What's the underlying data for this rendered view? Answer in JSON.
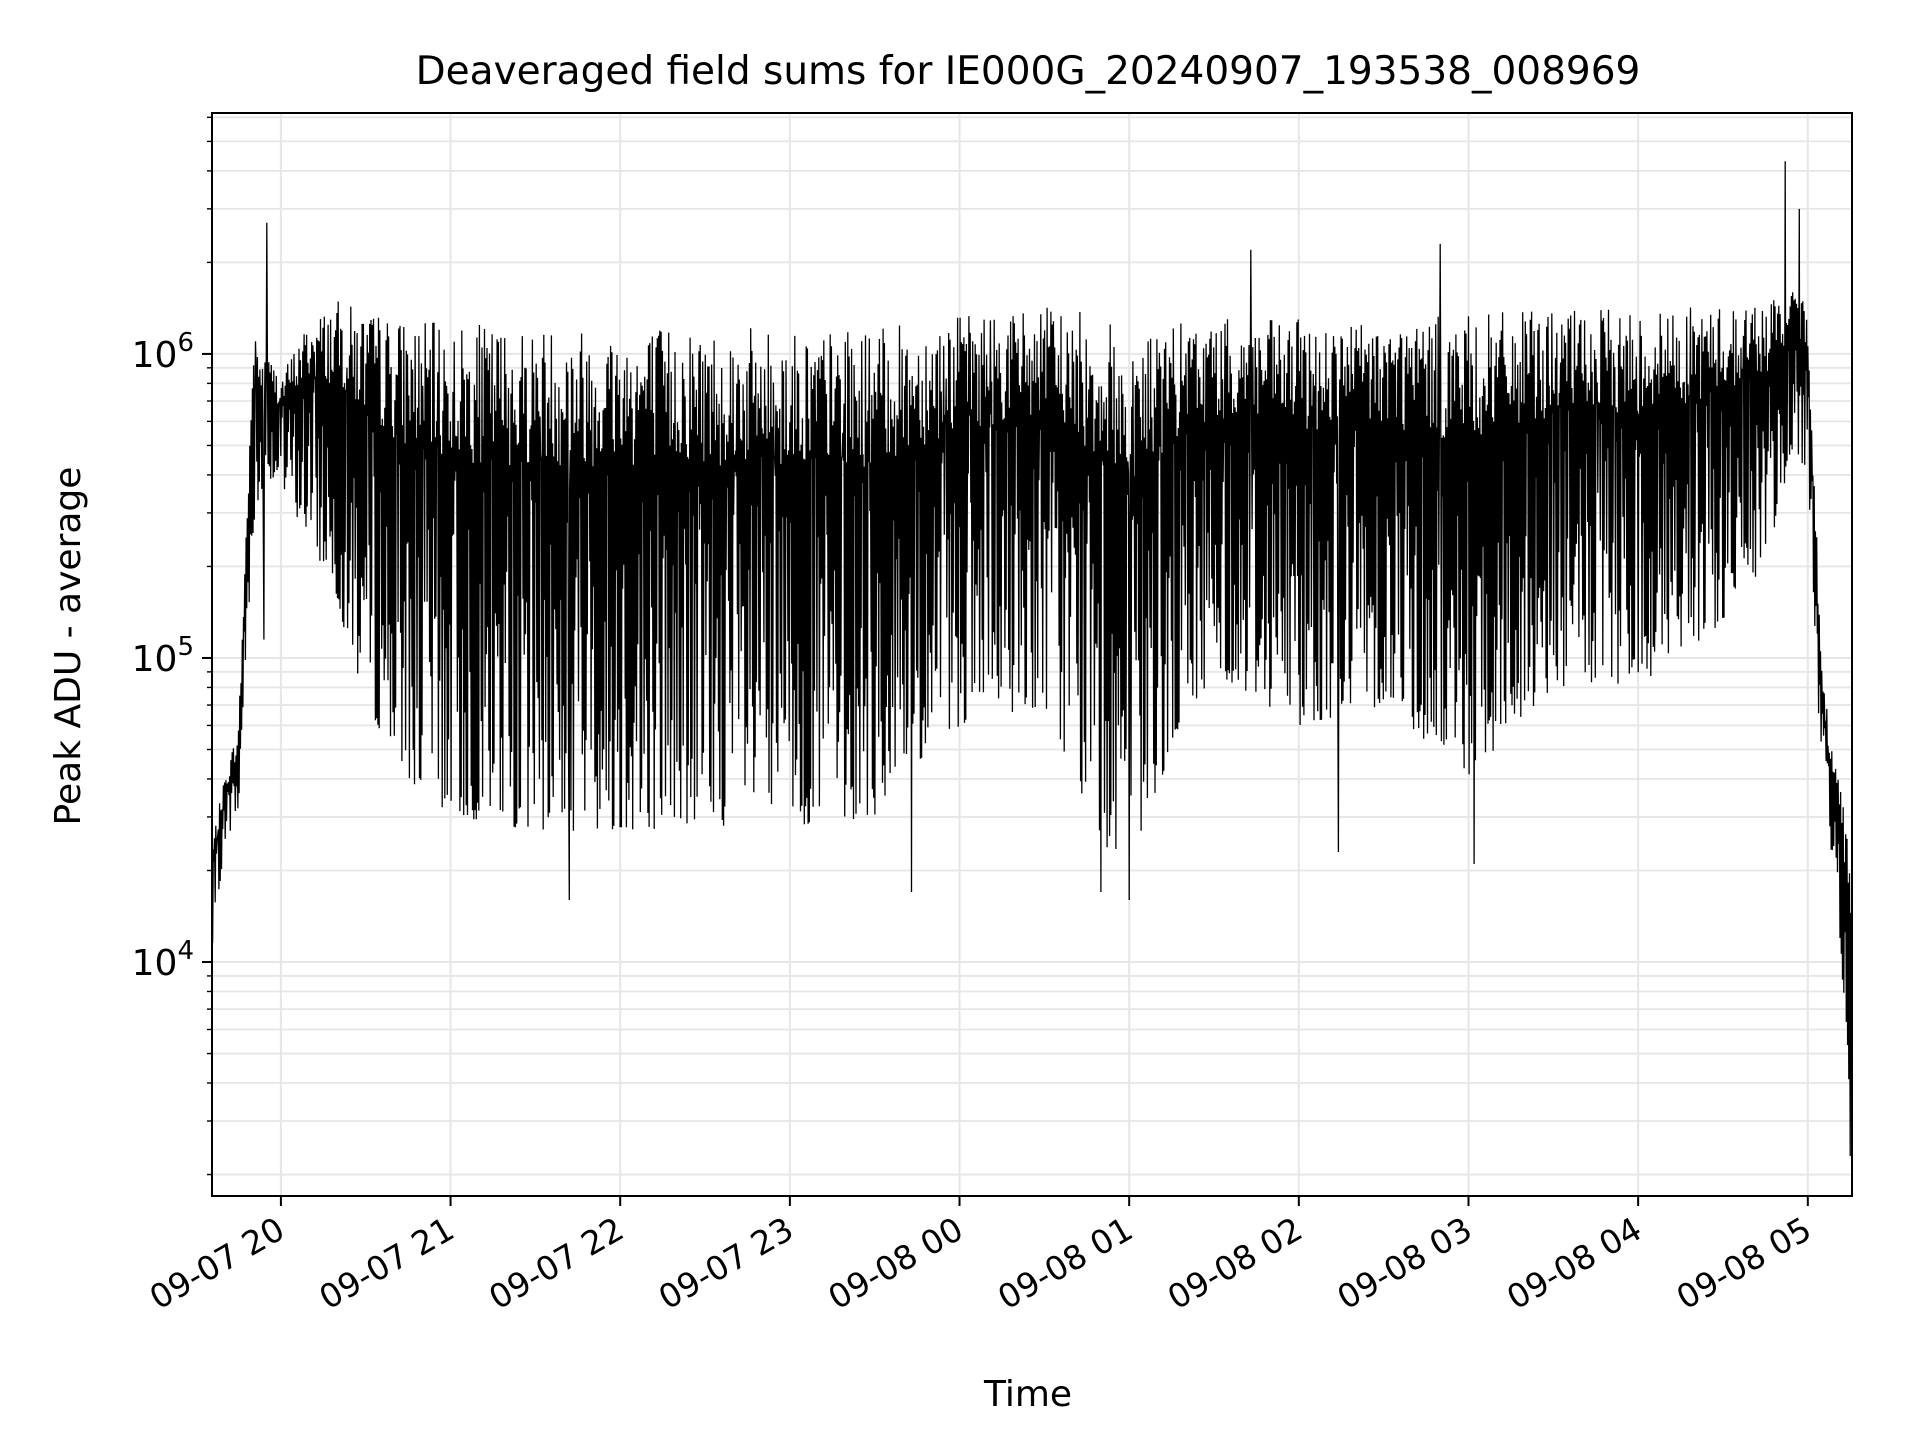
{
  "chart_data": {
    "type": "line",
    "title": "Deaveraged field sums for IE000G_20240907_193538_008969",
    "xlabel": "Time",
    "ylabel": "Peak ADU - average",
    "yscale": "log",
    "ylim": [
      1700,
      6200000
    ],
    "xlim": [
      "2024-09-07 19:35:38",
      "2024-09-08 05:15:38"
    ],
    "x_ticks": [
      {
        "label": "09-07 20",
        "time": "2024-09-07 20:00"
      },
      {
        "label": "09-07 21",
        "time": "2024-09-07 21:00"
      },
      {
        "label": "09-07 22",
        "time": "2024-09-07 22:00"
      },
      {
        "label": "09-07 23",
        "time": "2024-09-07 23:00"
      },
      {
        "label": "09-08 00",
        "time": "2024-09-08 00:00"
      },
      {
        "label": "09-08 01",
        "time": "2024-09-08 01:00"
      },
      {
        "label": "09-08 02",
        "time": "2024-09-08 02:00"
      },
      {
        "label": "09-08 03",
        "time": "2024-09-08 03:00"
      },
      {
        "label": "09-08 04",
        "time": "2024-09-08 04:00"
      },
      {
        "label": "09-08 05",
        "time": "2024-09-08 05:00"
      }
    ],
    "y_ticks": [
      {
        "base": "10",
        "exp": "4",
        "value": 10000
      },
      {
        "base": "10",
        "exp": "5",
        "value": 100000
      },
      {
        "base": "10",
        "exp": "6",
        "value": 1000000
      }
    ],
    "grid": true,
    "line_color": "#000000",
    "grid_color": "#e6e6e6",
    "series": [
      {
        "envelope": {
          "time": [
            "2024-09-07 19:35:38",
            "2024-09-07 19:40",
            "2024-09-07 19:45",
            "2024-09-07 19:50",
            "2024-09-07 19:55",
            "2024-09-07 20:00",
            "2024-09-07 20:10",
            "2024-09-07 20:20",
            "2024-09-07 20:30",
            "2024-09-07 20:45",
            "2024-09-07 21:00",
            "2024-09-07 21:30",
            "2024-09-07 22:00",
            "2024-09-07 22:30",
            "2024-09-07 23:00",
            "2024-09-07 23:30",
            "2024-09-08 00:00",
            "2024-09-08 00:30",
            "2024-09-08 00:50",
            "2024-09-08 01:00",
            "2024-09-08 01:15",
            "2024-09-08 01:30",
            "2024-09-08 02:00",
            "2024-09-08 02:30",
            "2024-09-08 03:00",
            "2024-09-08 03:30",
            "2024-09-08 04:00",
            "2024-09-08 04:30",
            "2024-09-08 04:45",
            "2024-09-08 04:55",
            "2024-09-08 05:00",
            "2024-09-08 05:05",
            "2024-09-08 05:10",
            "2024-09-08 05:15:38"
          ],
          "high": [
            25000,
            40000,
            60000,
            1000000,
            1000000,
            850000,
            1300000,
            1500000,
            1400000,
            1300000,
            1250000,
            1250000,
            1250000,
            1250000,
            1200000,
            1200000,
            1350000,
            1450000,
            1350000,
            1150000,
            1250000,
            1300000,
            1300000,
            1300000,
            1350000,
            1400000,
            1400000,
            1450000,
            1500000,
            1600000,
            1500000,
            90000,
            45000,
            25000
          ],
          "low": [
            10000,
            25000,
            30000,
            250000,
            400000,
            350000,
            250000,
            150000,
            70000,
            40000,
            30000,
            27000,
            27000,
            28000,
            28000,
            30000,
            60000,
            70000,
            25000,
            20000,
            50000,
            90000,
            60000,
            70000,
            40000,
            80000,
            80000,
            130000,
            200000,
            500000,
            400000,
            30000,
            20000,
            2500
          ]
        },
        "spikes": [
          {
            "time": "2024-09-07 19:51",
            "value": 1100000
          },
          {
            "time": "2024-09-07 19:55",
            "value": 2700000
          },
          {
            "time": "2024-09-07 19:54",
            "value": 115000
          },
          {
            "time": "2024-09-07 21:42",
            "value": 16000
          },
          {
            "time": "2024-09-07 23:43",
            "value": 17000
          },
          {
            "time": "2024-09-08 00:50",
            "value": 17000
          },
          {
            "time": "2024-09-08 01:00",
            "value": 16000
          },
          {
            "time": "2024-09-08 01:43",
            "value": 2200000
          },
          {
            "time": "2024-09-08 02:14",
            "value": 23000
          },
          {
            "time": "2024-09-08 02:50",
            "value": 2300000
          },
          {
            "time": "2024-09-08 03:02",
            "value": 21000
          },
          {
            "time": "2024-09-08 04:52",
            "value": 4300000
          },
          {
            "time": "2024-09-08 04:57",
            "value": 3000000
          },
          {
            "time": "2024-09-08 05:15",
            "value": 2300
          }
        ]
      }
    ]
  }
}
